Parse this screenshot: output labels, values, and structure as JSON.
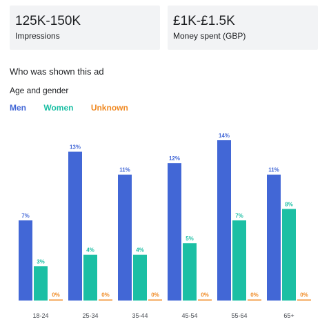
{
  "stats": [
    {
      "value": "125K-150K",
      "label": "Impressions"
    },
    {
      "value": "£1K-£1.5K",
      "label": "Money spent (GBP)"
    }
  ],
  "section_title": "Who was shown this ad",
  "breakdown_title": "Age and gender",
  "colors": {
    "men": "#4267d6",
    "women": "#1bbfa4",
    "unknown": "#f08a24"
  },
  "chart_data": {
    "type": "bar",
    "categories": [
      "18-24",
      "25-34",
      "35-44",
      "45-54",
      "55-64",
      "65+"
    ],
    "series": [
      {
        "name": "Men",
        "values": [
          7,
          13,
          11,
          12,
          14,
          11
        ],
        "labels": [
          "7%",
          "13%",
          "11%",
          "12%",
          "14%",
          "11%"
        ]
      },
      {
        "name": "Women",
        "values": [
          3,
          4,
          4,
          5,
          7,
          8
        ],
        "labels": [
          "3%",
          "4%",
          "4%",
          "5%",
          "7%",
          "8%"
        ]
      },
      {
        "name": "Unknown",
        "values": [
          0,
          0,
          0,
          0,
          0,
          0
        ],
        "labels": [
          "0%",
          "0%",
          "0%",
          "0%",
          "0%",
          "0%"
        ]
      }
    ],
    "title": "",
    "xlabel": "",
    "ylabel": "",
    "ylim": [
      0,
      14
    ],
    "grid": false,
    "legend": "top-left"
  }
}
